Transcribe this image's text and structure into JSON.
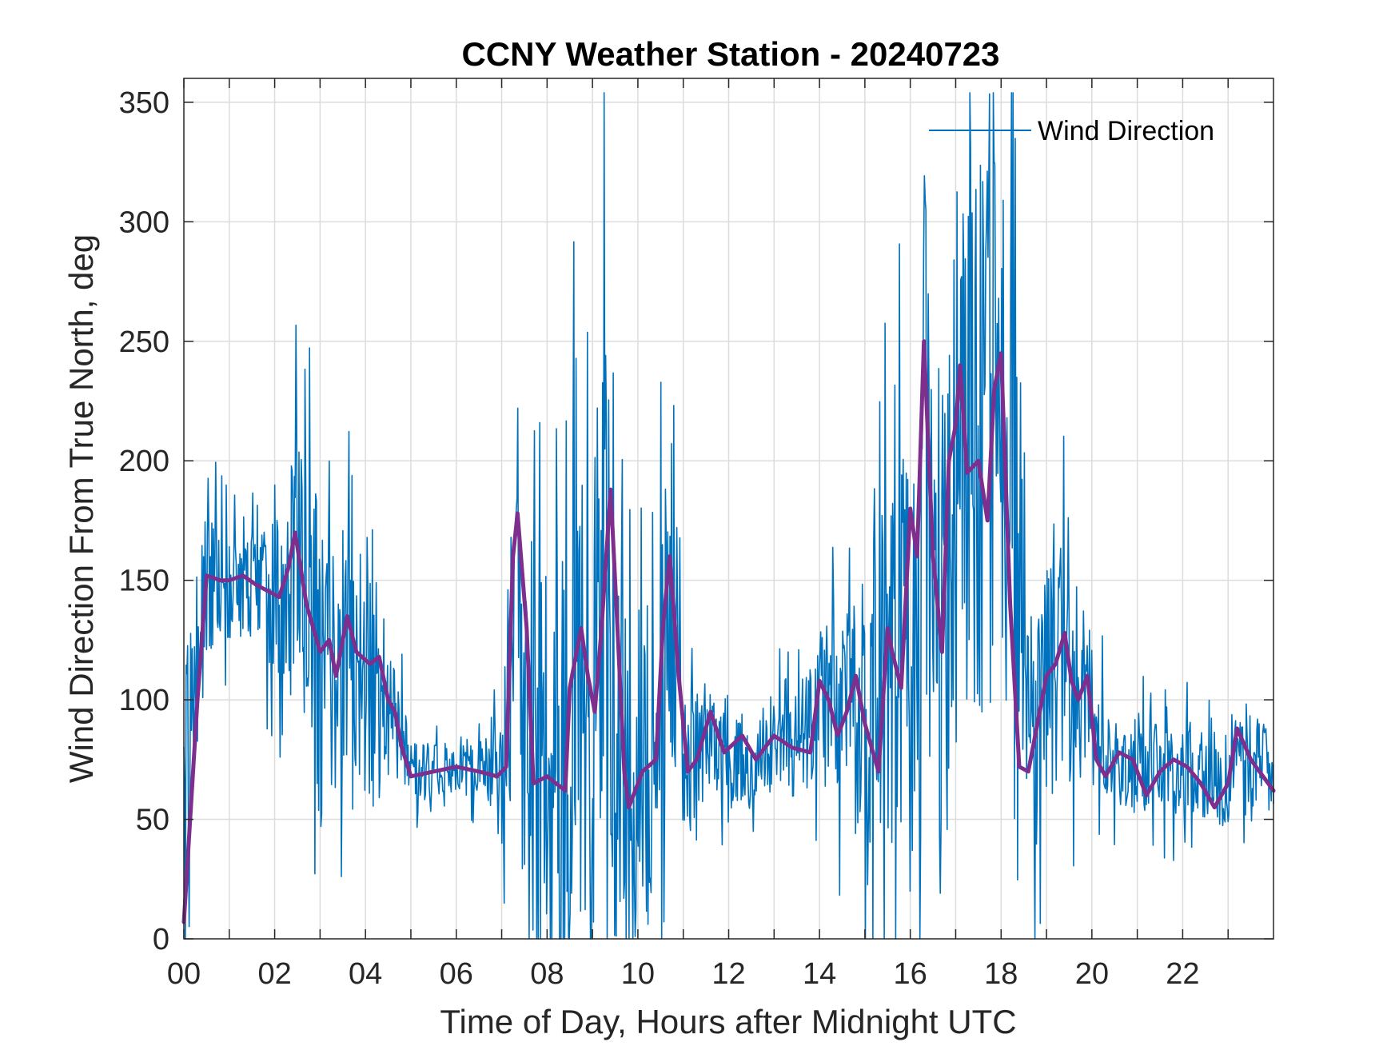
{
  "chart_data": {
    "type": "line",
    "title": "CCNY Weather Station - 20240723",
    "xlabel": "Time of Day, Hours after Midnight UTC",
    "ylabel": "Wind Direction From True North, deg",
    "xlim": [
      0,
      24
    ],
    "ylim": [
      0,
      360
    ],
    "xticks": [
      0,
      2,
      4,
      6,
      8,
      10,
      12,
      14,
      16,
      18,
      20,
      22
    ],
    "xtick_labels": [
      "00",
      "02",
      "04",
      "06",
      "08",
      "10",
      "12",
      "14",
      "16",
      "18",
      "20",
      "22"
    ],
    "yticks": [
      0,
      50,
      100,
      150,
      200,
      250,
      300,
      350
    ],
    "ytick_labels": [
      "0",
      "50",
      "100",
      "150",
      "200",
      "250",
      "300",
      "350"
    ],
    "grid": true,
    "legend": {
      "entries": [
        "Wind Direction"
      ],
      "position": "top-right"
    },
    "colors": {
      "raw": "#0072BD",
      "smoothed": "#7E2F8E"
    },
    "series": [
      {
        "name": "Wind Direction",
        "style": "raw",
        "anchors": {
          "x": [
            0,
            0.5,
            1,
            1.5,
            2,
            2.5,
            3,
            3.5,
            4,
            4.5,
            5,
            5.5,
            6,
            6.5,
            7,
            7.3,
            7.6,
            8,
            8.3,
            8.6,
            9,
            9.3,
            9.6,
            10,
            10.4,
            10.8,
            11,
            11.5,
            12,
            12.5,
            13,
            13.5,
            14,
            14.5,
            15,
            15.5,
            16,
            16.3,
            16.6,
            17,
            17.3,
            17.6,
            18,
            18.3,
            18.7,
            19,
            19.5,
            20,
            20.5,
            21,
            21.5,
            22,
            22.5,
            23,
            23.5,
            24
          ],
          "y": [
            70,
            148,
            150,
            148,
            145,
            150,
            120,
            120,
            115,
            100,
            70,
            70,
            72,
            70,
            70,
            160,
            70,
            65,
            62,
            110,
            95,
            170,
            60,
            70,
            75,
            150,
            70,
            85,
            80,
            75,
            85,
            80,
            100,
            90,
            95,
            120,
            115,
            230,
            120,
            200,
            220,
            200,
            230,
            200,
            70,
            110,
            115,
            95,
            70,
            75,
            70,
            72,
            68,
            65,
            80,
            65
          ],
          "noise": [
            60,
            40,
            30,
            30,
            40,
            70,
            90,
            90,
            70,
            40,
            15,
            15,
            12,
            15,
            40,
            120,
            100,
            120,
            130,
            140,
            140,
            140,
            130,
            90,
            90,
            100,
            40,
            30,
            30,
            20,
            25,
            30,
            40,
            50,
            70,
            100,
            120,
            150,
            150,
            150,
            150,
            150,
            140,
            130,
            60,
            70,
            60,
            40,
            25,
            25,
            25,
            25,
            25,
            25,
            30,
            20
          ]
        },
        "samples": 1440
      },
      {
        "name": "Wind Direction (smoothed)",
        "style": "smoothed",
        "x": [
          0,
          0.3,
          0.5,
          0.8,
          1,
          1.3,
          1.6,
          1.9,
          2.1,
          2.3,
          2.45,
          2.7,
          3,
          3.2,
          3.35,
          3.6,
          3.8,
          4.1,
          4.3,
          4.5,
          4.65,
          4.8,
          5,
          5.5,
          6,
          6.5,
          6.9,
          7.1,
          7.25,
          7.35,
          7.55,
          7.7,
          8,
          8.4,
          8.5,
          8.75,
          8.9,
          9.05,
          9.2,
          9.4,
          9.55,
          9.7,
          9.8,
          10.1,
          10.4,
          10.55,
          10.7,
          10.9,
          11.1,
          11.3,
          11.6,
          11.9,
          12.3,
          12.6,
          13,
          13.4,
          13.8,
          14.0,
          14.2,
          14.4,
          14.6,
          14.8,
          15.0,
          15.3,
          15.5,
          15.6,
          15.8,
          16.0,
          16.15,
          16.3,
          16.5,
          16.7,
          16.85,
          17.0,
          17.1,
          17.25,
          17.5,
          17.7,
          17.85,
          18.0,
          18.2,
          18.4,
          18.6,
          18.8,
          19.0,
          19.2,
          19.4,
          19.55,
          19.7,
          19.9,
          20.1,
          20.3,
          20.6,
          20.9,
          21.2,
          21.5,
          21.8,
          22.1,
          22.4,
          22.7,
          23.0,
          23.2,
          23.5,
          24.0
        ],
        "y": [
          7,
          100,
          152,
          150,
          150,
          152,
          148,
          145,
          143,
          155,
          170,
          140,
          120,
          125,
          110,
          135,
          120,
          115,
          118,
          100,
          95,
          80,
          68,
          70,
          72,
          70,
          68,
          72,
          160,
          178,
          130,
          65,
          68,
          62,
          105,
          130,
          110,
          95,
          130,
          188,
          130,
          70,
          55,
          70,
          75,
          130,
          160,
          110,
          70,
          75,
          95,
          78,
          85,
          75,
          85,
          80,
          78,
          108,
          100,
          85,
          95,
          110,
          90,
          70,
          130,
          120,
          105,
          180,
          160,
          250,
          160,
          120,
          200,
          215,
          240,
          195,
          200,
          175,
          230,
          245,
          140,
          72,
          70,
          90,
          110,
          115,
          128,
          108,
          100,
          110,
          75,
          68,
          78,
          75,
          60,
          70,
          75,
          72,
          65,
          55,
          65,
          88,
          75,
          62
        ]
      }
    ]
  }
}
